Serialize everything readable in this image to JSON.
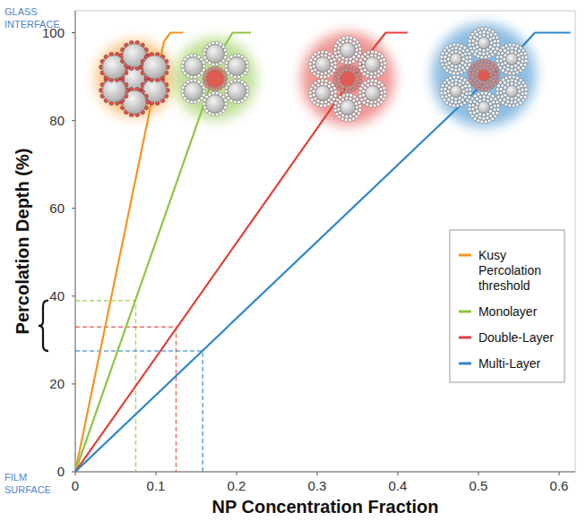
{
  "chart_data": {
    "type": "line",
    "xlabel": "NP Concentration Fraction",
    "ylabel": "Percolation Depth (%)",
    "annotations": [
      {
        "text": "GLASS INTERFACE",
        "y": 100
      },
      {
        "text": "FILM SURFACE",
        "y": 0
      }
    ],
    "xlim": [
      0,
      0.62
    ],
    "ylim": [
      0,
      105
    ],
    "xticks": [
      0,
      0.1,
      0.2,
      0.3,
      0.4,
      0.5,
      0.6
    ],
    "yticks": [
      0,
      20,
      40,
      60,
      80,
      100
    ],
    "grid": false,
    "legend": "lower right",
    "series": [
      {
        "name": "Kusy Percolation threshold",
        "color": "#f7941d",
        "line_style": "solid",
        "x": [
          0,
          0.11,
          0.118,
          0.134
        ],
        "values": [
          0,
          98,
          100,
          100
        ]
      },
      {
        "name": "Monolayer",
        "color": "#8dc63f",
        "line_style": "solid",
        "x": [
          0,
          0.185,
          0.195,
          0.218
        ],
        "values": [
          0,
          97,
          100,
          100
        ],
        "guide": {
          "x": 0.075,
          "y": 39
        }
      },
      {
        "name": "Double-Layer",
        "color": "#e2403a",
        "line_style": "solid",
        "x": [
          0,
          0.372,
          0.385,
          0.412
        ],
        "values": [
          0,
          97,
          100,
          100
        ],
        "guide": {
          "x": 0.125,
          "y": 33
        }
      },
      {
        "name": "Multi-Layer",
        "color": "#2f86c9",
        "line_style": "solid",
        "x": [
          0,
          0.555,
          0.57,
          0.614
        ],
        "values": [
          0,
          97,
          100,
          100
        ],
        "guide": {
          "x": 0.158,
          "y": 27.5
        }
      }
    ]
  }
}
